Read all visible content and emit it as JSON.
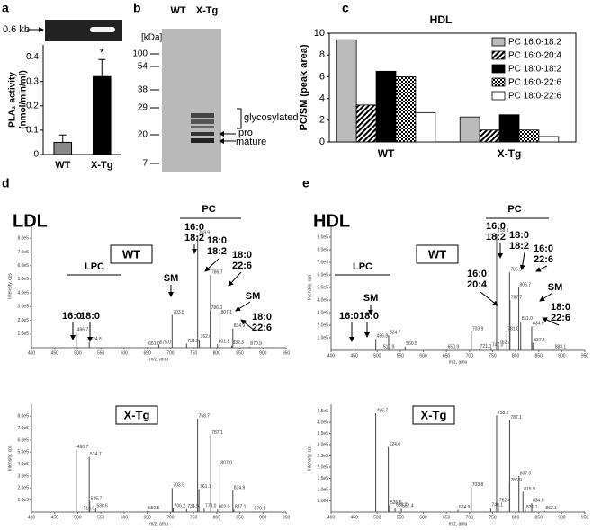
{
  "panel_labels": [
    "a",
    "b",
    "c",
    "d",
    "e"
  ],
  "gel": {
    "label": "0.6 kb"
  },
  "blot": {
    "lanes": [
      "WT",
      "X-Tg"
    ],
    "unit": "[kDa]",
    "markers": [
      100,
      54,
      38,
      29,
      20,
      7
    ],
    "forms": [
      "glycosylated",
      "pro",
      "mature"
    ]
  },
  "chart_data": [
    {
      "type": "bar",
      "y_label": [
        "PLA₂ activity",
        "(nmol/min/ml)"
      ],
      "categories": [
        "WT",
        "X-Tg"
      ],
      "values": [
        0.05,
        0.32
      ],
      "errors": [
        0.03,
        0.07
      ],
      "colors": [
        "#888888",
        "#000000"
      ],
      "ylim": [
        0,
        0.45
      ],
      "yticks": [
        0,
        0.1,
        0.2,
        0.3,
        0.4
      ],
      "annotations": [
        "*"
      ]
    },
    {
      "type": "grouped_bar",
      "title": "HDL",
      "y_label": "PC/SM (peak area)",
      "categories": [
        "WT",
        "X-Tg"
      ],
      "ylim": [
        0,
        10
      ],
      "yticks": [
        0,
        2,
        4,
        6,
        8,
        10
      ],
      "legend": "upper right",
      "series": [
        {
          "name": "PC 16:0-18:2",
          "color": "#bbbbbb",
          "pattern": "solid",
          "values": [
            9.4,
            2.3
          ]
        },
        {
          "name": "PC 16:0-20:4",
          "color": "#000000",
          "pattern": "diagonal",
          "values": [
            3.4,
            1.1
          ]
        },
        {
          "name": "PC 18:0-18:2",
          "color": "#000000",
          "pattern": "solid",
          "values": [
            6.5,
            2.5
          ]
        },
        {
          "name": "PC 16:0-22:6",
          "color": "#000000",
          "pattern": "checker",
          "values": [
            6.0,
            1.1
          ]
        },
        {
          "name": "PC 18:0-22:6",
          "color": "#ffffff",
          "pattern": "solid",
          "values": [
            2.7,
            0.5
          ]
        }
      ]
    },
    {
      "type": "spectrum",
      "title": "LDL",
      "sample": "WT",
      "x_label": "m/z, amu",
      "y_label": "Intensity, cps",
      "xlim": [
        400,
        950
      ],
      "xticks": [
        400,
        450,
        500,
        550,
        600,
        650,
        700,
        750,
        800,
        850,
        900,
        950
      ],
      "ylim": [
        0,
        900000
      ],
      "yticks": [
        {
          "value": 100000,
          "label": "1.0e5"
        },
        {
          "value": 200000,
          "label": "2.0e5"
        },
        {
          "value": 300000,
          "label": "3.0e5"
        },
        {
          "value": 400000,
          "label": "4.0e5"
        },
        {
          "value": 500000,
          "label": "5.0e5"
        },
        {
          "value": 600000,
          "label": "6.0e5"
        },
        {
          "value": 700000,
          "label": "7.0e5"
        },
        {
          "value": 800000,
          "label": "8.0e5"
        }
      ],
      "x": [
        496.7,
        524.8,
        651.0,
        675.0,
        703.8,
        734.9,
        758.9,
        762.6,
        786.0,
        786.7,
        801.8,
        807.1,
        832.3,
        834.9,
        870.9
      ],
      "x_labels": [
        "496.7",
        "524.8",
        "651.0",
        "675.0",
        "703.8",
        "734.9",
        "758.9",
        "762.6",
        "786.0",
        "786.7",
        "801.8",
        "807.1",
        "832.3",
        "834.9",
        "870.9"
      ],
      "values": [
        110000,
        40000,
        8000,
        20000,
        240000,
        30000,
        820000,
        60000,
        270000,
        530000,
        25000,
        240000,
        15000,
        140000,
        8000
      ],
      "annotations": [
        [
          "LPC"
        ],
        [
          "16:0"
        ],
        [
          "18:0"
        ],
        [
          "SM"
        ],
        [
          "PC"
        ],
        [
          "16:0",
          "18:2"
        ],
        [
          "18:0",
          "18:2"
        ],
        [
          "18:0",
          "22:6"
        ],
        [
          "SM"
        ],
        [
          "18:0",
          "22:6"
        ]
      ]
    },
    {
      "type": "spectrum",
      "sample": "X-Tg",
      "x_label": "m/z, amu",
      "y_label": "Intensity, cps",
      "xlim": [
        400,
        950
      ],
      "xticks": [
        400,
        450,
        500,
        550,
        600,
        650,
        700,
        750,
        800,
        850,
        900,
        950
      ],
      "ylim": [
        0,
        900000
      ],
      "yticks": [
        {
          "value": 100000,
          "label": "1.0e5"
        },
        {
          "value": 200000,
          "label": "2.0e5"
        },
        {
          "value": 300000,
          "label": "3.0e5"
        },
        {
          "value": 400000,
          "label": "4.0e5"
        },
        {
          "value": 500000,
          "label": "5.0e5"
        },
        {
          "value": 600000,
          "label": "6.0e5"
        },
        {
          "value": 700000,
          "label": "7.0e5"
        },
        {
          "value": 800000,
          "label": "8.0e5"
        }
      ],
      "x": [
        496.7,
        510.0,
        524.7,
        525.7,
        538.6,
        650.5,
        703.9,
        706.2,
        734.9,
        758.7,
        761.7,
        773.0,
        787.1,
        802.0,
        807.0,
        834.9,
        837.1,
        879.1
      ],
      "x_labels": [
        "496.7",
        "510.0",
        "524.7",
        "525.7",
        "538.6",
        "650.5",
        "703.9",
        "706.2",
        "734.9",
        "758.7",
        "761.7",
        "773.0",
        "787.1",
        "802.0",
        "807.0",
        "834.9",
        "837.1",
        "879.1"
      ],
      "values": [
        520000,
        5000,
        460000,
        90000,
        30000,
        10000,
        200000,
        30000,
        25000,
        780000,
        190000,
        30000,
        640000,
        20000,
        390000,
        180000,
        20000,
        5000
      ],
      "annotations": []
    },
    {
      "type": "spectrum",
      "title": "HDL",
      "sample": "WT",
      "x_label": "m/z, amu",
      "y_label": "Intensity, cps",
      "xlim": [
        400,
        950
      ],
      "xticks": [
        400,
        450,
        500,
        550,
        600,
        650,
        700,
        750,
        800,
        850,
        900,
        950
      ],
      "ylim": [
        0,
        1000000
      ],
      "yticks": [
        {
          "value": 100000,
          "label": "1.0e5"
        },
        {
          "value": 200000,
          "label": "2.0e5"
        },
        {
          "value": 300000,
          "label": "3.0e5"
        },
        {
          "value": 400000,
          "label": "4.0e5"
        },
        {
          "value": 500000,
          "label": "5.0e5"
        },
        {
          "value": 600000,
          "label": "6.0e5"
        },
        {
          "value": 700000,
          "label": "7.0e5"
        },
        {
          "value": 800000,
          "label": "8.0e5"
        },
        {
          "value": 900000,
          "label": "9.0e5"
        }
      ],
      "x": [
        496.8,
        510.9,
        524.7,
        560.5,
        650.9,
        703.9,
        721.0,
        747.0,
        758.8,
        762.7,
        781.0,
        786.9,
        787.7,
        806.7,
        811.0,
        834.9,
        837.4,
        883.1
      ],
      "x_labels": [
        "496.8",
        "510.9",
        "524.7",
        "560.5",
        "650.9",
        "703.9",
        "721.0",
        "747.0",
        "758.8",
        "762.7",
        "781.0",
        "786.9",
        "787.7",
        "806.7",
        "811.0",
        "834.9",
        "837.4",
        "883.1"
      ],
      "values": [
        90000,
        5000,
        120000,
        30000,
        5000,
        150000,
        10000,
        20000,
        930000,
        40000,
        150000,
        620000,
        400000,
        500000,
        230000,
        190000,
        60000,
        5000
      ],
      "annotations": [
        [
          "LPC"
        ],
        [
          "16:0"
        ],
        [
          "18:0"
        ],
        [
          "SM"
        ],
        [
          "PC"
        ],
        [
          "16:0",
          "18:2"
        ],
        [
          "18:0",
          "18:2"
        ],
        [
          "16:0",
          "22:6"
        ],
        [
          "16:0",
          "20:4"
        ],
        [
          "SM"
        ],
        [
          "18:0",
          "22:6"
        ]
      ]
    },
    {
      "type": "spectrum",
      "sample": "X-Tg",
      "x_label": "m/z, amu",
      "y_label": "Intensity, cps",
      "xlim": [
        400,
        950
      ],
      "xticks": [
        400,
        450,
        500,
        550,
        600,
        650,
        700,
        750,
        800,
        850,
        900,
        950
      ],
      "ylim": [
        0,
        480000
      ],
      "yticks": [
        {
          "value": 50000,
          "label": "5.0e4"
        },
        {
          "value": 100000,
          "label": "1.0e5"
        },
        {
          "value": 150000,
          "label": "1.5e5"
        },
        {
          "value": 200000,
          "label": "2.0e5"
        },
        {
          "value": 250000,
          "label": "2.5e5"
        },
        {
          "value": 300000,
          "label": "3.0e5"
        },
        {
          "value": 350000,
          "label": "3.5e5"
        },
        {
          "value": 400000,
          "label": "4.0e5"
        },
        {
          "value": 450000,
          "label": "4.5e5"
        }
      ],
      "x": [
        496.7,
        524.0,
        526.5,
        538.7,
        552.4,
        674.9,
        703.8,
        746.1,
        758.8,
        762.4,
        786.9,
        787.1,
        807.0,
        815.9,
        821.1,
        834.9,
        863.1
      ],
      "x_labels": [
        "496.7",
        "524.0",
        "526.5",
        "538.7",
        "552.4",
        "674.9",
        "703.8",
        "746.1",
        "758.8",
        "762.4",
        "786.9",
        "787.1",
        "807.0",
        "815.9",
        "821.1",
        "834.9",
        "863.1"
      ],
      "values": [
        440000,
        290000,
        30000,
        20000,
        15000,
        10000,
        110000,
        20000,
        430000,
        40000,
        130000,
        410000,
        160000,
        90000,
        10000,
        40000,
        5000
      ],
      "annotations": []
    }
  ]
}
